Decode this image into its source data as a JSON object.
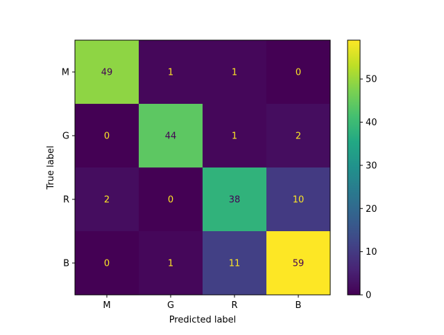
{
  "chart_data": {
    "type": "heatmap",
    "title": "",
    "xlabel": "Predicted label",
    "ylabel": "True label",
    "x_categories": [
      "M",
      "G",
      "R",
      "B"
    ],
    "y_categories": [
      "M",
      "G",
      "R",
      "B"
    ],
    "matrix": [
      [
        49,
        1,
        1,
        0
      ],
      [
        0,
        44,
        1,
        2
      ],
      [
        2,
        0,
        38,
        10
      ],
      [
        0,
        1,
        11,
        59
      ]
    ],
    "colorbar": {
      "min": 0,
      "max": 59,
      "ticks": [
        0,
        10,
        20,
        30,
        40,
        50
      ],
      "colormap": "viridis"
    },
    "text_colors": {
      "low": "#fde725",
      "high": "#440154"
    }
  }
}
